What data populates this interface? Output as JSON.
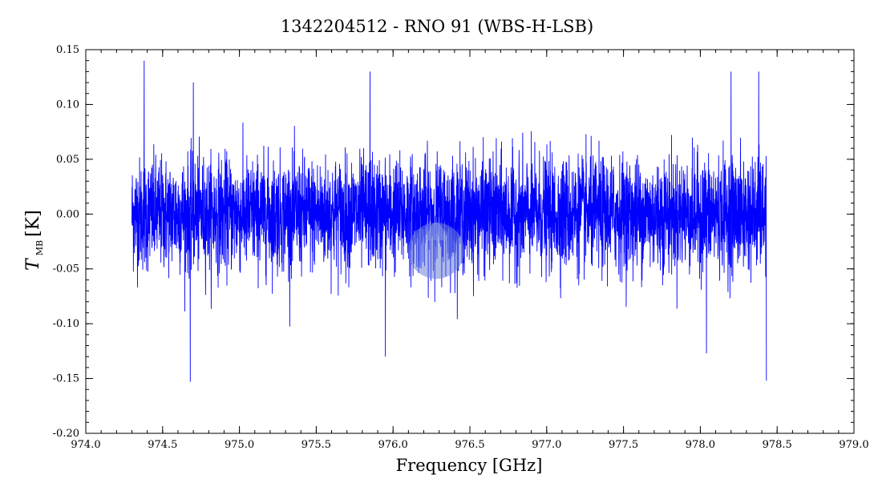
{
  "chart_data": {
    "type": "line",
    "title": "1342204512 - RNO 91 (WBS-H-LSB)",
    "xlabel": "Frequency [GHz]",
    "ylabel_main": "T",
    "ylabel_sub": "MB",
    "ylabel_unit": "[K]",
    "xlim": [
      974.0,
      979.0
    ],
    "ylim": [
      -0.2,
      0.15
    ],
    "xticks": [
      "974.0",
      "974.5",
      "975.0",
      "975.5",
      "976.0",
      "976.5",
      "977.0",
      "977.5",
      "978.0",
      "978.5",
      "979.0"
    ],
    "yticks": [
      "0.15",
      "0.10",
      "0.05",
      "0.00",
      "-0.05",
      "-0.10",
      "-0.15",
      "-0.20"
    ],
    "series_color": "#0000ff",
    "series": [
      {
        "x_start": 974.3,
        "x_end": 978.43,
        "noise_rms": 0.03,
        "notable_peaks": [
          {
            "x": 974.38,
            "y": 0.14
          },
          {
            "x": 974.7,
            "y": 0.12
          },
          {
            "x": 975.85,
            "y": 0.13
          },
          {
            "x": 978.2,
            "y": 0.13
          },
          {
            "x": 978.38,
            "y": 0.13
          }
        ],
        "notable_dips": [
          {
            "x": 974.68,
            "y": -0.153
          },
          {
            "x": 975.95,
            "y": -0.13
          },
          {
            "x": 978.04,
            "y": -0.127
          },
          {
            "x": 978.43,
            "y": -0.152
          }
        ]
      }
    ]
  }
}
